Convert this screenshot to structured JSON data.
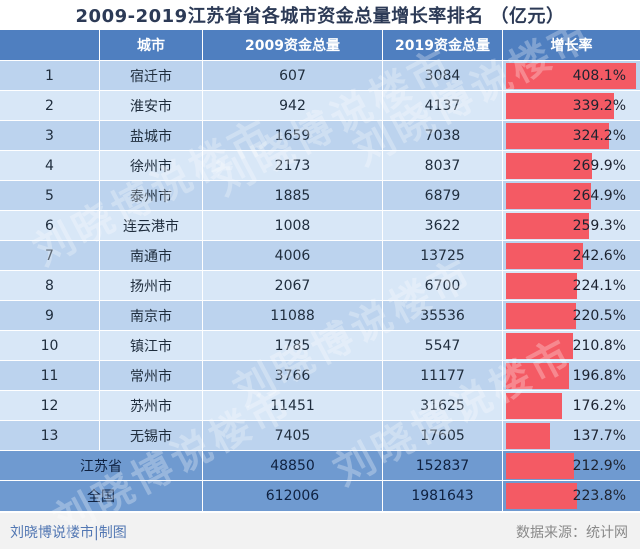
{
  "title": "2009-2019江苏省省各城市资金总量增长率排名 （亿元）",
  "headers": [
    "",
    "城市",
    "2009资金总量",
    "2019资金总量",
    "增长率"
  ],
  "rows": [
    {
      "rank": "1",
      "city": "宿迁市",
      "v2009": "607",
      "v2019": "3084",
      "growth": "408.1%"
    },
    {
      "rank": "2",
      "city": "淮安市",
      "v2009": "942",
      "v2019": "4137",
      "growth": "339.2%"
    },
    {
      "rank": "3",
      "city": "盐城市",
      "v2009": "1659",
      "v2019": "7038",
      "growth": "324.2%"
    },
    {
      "rank": "4",
      "city": "徐州市",
      "v2009": "2173",
      "v2019": "8037",
      "growth": "269.9%"
    },
    {
      "rank": "5",
      "city": "泰州市",
      "v2009": "1885",
      "v2019": "6879",
      "growth": "264.9%"
    },
    {
      "rank": "6",
      "city": "连云港市",
      "v2009": "1008",
      "v2019": "3622",
      "growth": "259.3%"
    },
    {
      "rank": "7",
      "city": "南通市",
      "v2009": "4006",
      "v2019": "13725",
      "growth": "242.6%"
    },
    {
      "rank": "8",
      "city": "扬州市",
      "v2009": "2067",
      "v2019": "6700",
      "growth": "224.1%"
    },
    {
      "rank": "9",
      "city": "南京市",
      "v2009": "11088",
      "v2019": "35536",
      "growth": "220.5%"
    },
    {
      "rank": "10",
      "city": "镇江市",
      "v2009": "1785",
      "v2019": "5547",
      "growth": "210.8%"
    },
    {
      "rank": "11",
      "city": "常州市",
      "v2009": "3766",
      "v2019": "11177",
      "growth": "196.8%"
    },
    {
      "rank": "12",
      "city": "苏州市",
      "v2009": "11451",
      "v2019": "31625",
      "growth": "176.2%"
    },
    {
      "rank": "13",
      "city": "无锡市",
      "v2009": "7405",
      "v2019": "17605",
      "growth": "137.7%"
    }
  ],
  "summary": [
    {
      "label": "江苏省",
      "v2009": "48850",
      "v2019": "152837",
      "growth": "212.9%"
    },
    {
      "label": "全国",
      "v2009": "612006",
      "v2019": "1981643",
      "growth": "223.8%"
    }
  ],
  "footer": {
    "left": "刘晓博说楼市|制图",
    "right": "数据来源：统计网"
  },
  "watermark": "刘晓博说楼市",
  "colors": {
    "header_bg": "#4f7fc0",
    "row_odd": "#bcd3ee",
    "row_even": "#d8e7f7",
    "summary_bg": "#6f9ad0",
    "bar": "#f45a64"
  },
  "chart_data": {
    "type": "table",
    "title": "2009-2019江苏省省各城市资金总量增长率排名 （亿元）",
    "columns": [
      "",
      "城市",
      "2009资金总量",
      "2019资金总量",
      "增长率"
    ],
    "categories": [
      "宿迁市",
      "淮安市",
      "盐城市",
      "徐州市",
      "泰州市",
      "连云港市",
      "南通市",
      "扬州市",
      "南京市",
      "镇江市",
      "常州市",
      "苏州市",
      "无锡市",
      "江苏省",
      "全国"
    ],
    "series": [
      {
        "name": "2009资金总量",
        "values": [
          607,
          942,
          1659,
          2173,
          1885,
          1008,
          4006,
          2067,
          11088,
          1785,
          3766,
          11451,
          7405,
          48850,
          612006
        ]
      },
      {
        "name": "2019资金总量",
        "values": [
          3084,
          4137,
          7038,
          8037,
          6879,
          3622,
          13725,
          6700,
          35536,
          5547,
          11177,
          31625,
          17605,
          152837,
          1981643
        ]
      },
      {
        "name": "增长率",
        "values": [
          408.1,
          339.2,
          324.2,
          269.9,
          264.9,
          259.3,
          242.6,
          224.1,
          220.5,
          210.8,
          196.8,
          176.2,
          137.7,
          212.9,
          223.8
        ]
      }
    ],
    "bar_max": 420
  }
}
